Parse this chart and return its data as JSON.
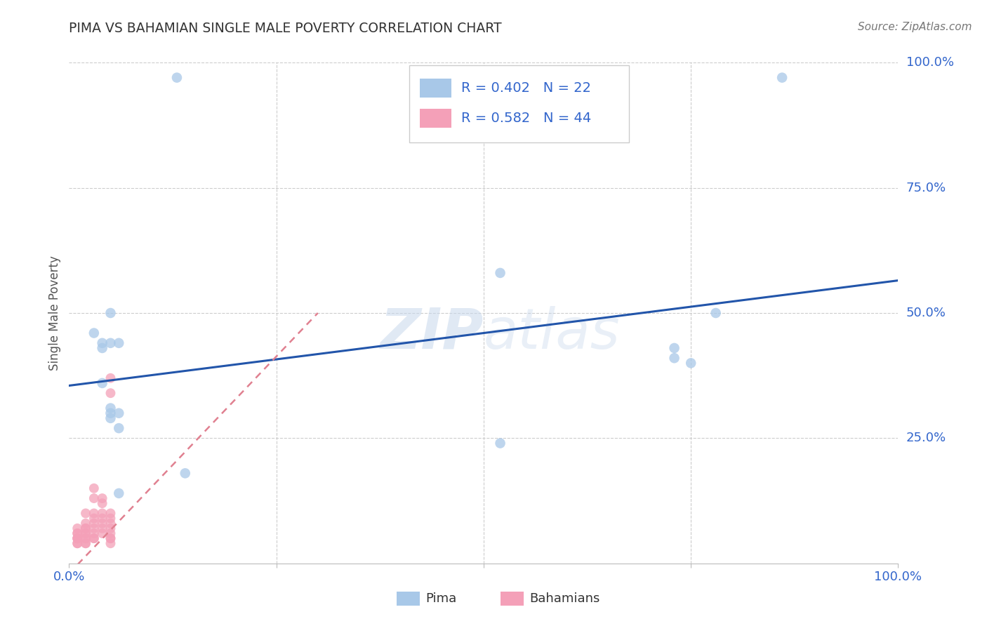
{
  "title": "PIMA VS BAHAMIAN SINGLE MALE POVERTY CORRELATION CHART",
  "source": "Source: ZipAtlas.com",
  "ylabel": "Single Male Poverty",
  "xlim": [
    0,
    1
  ],
  "ylim": [
    0,
    1
  ],
  "ytick_positions": [
    0.25,
    0.5,
    0.75,
    1.0
  ],
  "ytick_labels": [
    "25.0%",
    "50.0%",
    "75.0%",
    "100.0%"
  ],
  "pima_r": 0.402,
  "pima_n": 22,
  "bahamian_r": 0.582,
  "bahamian_n": 44,
  "pima_color": "#A8C8E8",
  "bahamian_color": "#F4A0B8",
  "pima_line_color": "#2255AA",
  "bahamian_line_color": "#E08090",
  "text_color": "#3366CC",
  "label_color": "#555555",
  "background_color": "#FFFFFF",
  "grid_color": "#CCCCCC",
  "watermark": "ZIPatlas",
  "pima_points_x": [
    0.13,
    0.03,
    0.04,
    0.04,
    0.04,
    0.05,
    0.05,
    0.05,
    0.06,
    0.06,
    0.05,
    0.05,
    0.06,
    0.06,
    0.14,
    0.86,
    0.52,
    0.73,
    0.75,
    0.78,
    0.73,
    0.52
  ],
  "pima_points_y": [
    0.97,
    0.46,
    0.44,
    0.43,
    0.36,
    0.31,
    0.3,
    0.29,
    0.3,
    0.14,
    0.5,
    0.44,
    0.44,
    0.27,
    0.18,
    0.97,
    0.58,
    0.43,
    0.4,
    0.5,
    0.41,
    0.24
  ],
  "bahamian_points_x": [
    0.01,
    0.01,
    0.01,
    0.01,
    0.01,
    0.01,
    0.01,
    0.01,
    0.02,
    0.02,
    0.02,
    0.02,
    0.02,
    0.02,
    0.02,
    0.02,
    0.02,
    0.02,
    0.03,
    0.03,
    0.03,
    0.03,
    0.03,
    0.03,
    0.03,
    0.03,
    0.03,
    0.04,
    0.04,
    0.04,
    0.04,
    0.04,
    0.04,
    0.04,
    0.05,
    0.05,
    0.05,
    0.05,
    0.05,
    0.05,
    0.05,
    0.05,
    0.05,
    0.05
  ],
  "bahamian_points_y": [
    0.04,
    0.04,
    0.05,
    0.05,
    0.05,
    0.06,
    0.06,
    0.07,
    0.04,
    0.04,
    0.05,
    0.05,
    0.06,
    0.06,
    0.07,
    0.07,
    0.08,
    0.1,
    0.05,
    0.05,
    0.06,
    0.07,
    0.08,
    0.09,
    0.1,
    0.13,
    0.15,
    0.06,
    0.07,
    0.08,
    0.09,
    0.1,
    0.12,
    0.13,
    0.04,
    0.05,
    0.05,
    0.06,
    0.07,
    0.08,
    0.09,
    0.1,
    0.34,
    0.37
  ],
  "pima_line_x0": 0.0,
  "pima_line_y0": 0.355,
  "pima_line_x1": 1.0,
  "pima_line_y1": 0.565,
  "bahamian_line_x0": 0.0,
  "bahamian_line_y0": -0.02,
  "bahamian_line_x1": 0.3,
  "bahamian_line_y1": 0.5
}
